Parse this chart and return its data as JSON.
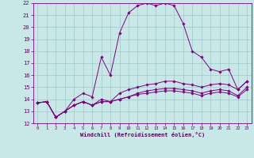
{
  "xlabel": "Windchill (Refroidissement éolien,°C)",
  "bg_color": "#c8e8e8",
  "line_color": "#800080",
  "grid_color": "#a0c8c8",
  "xlim": [
    -0.5,
    23.5
  ],
  "ylim": [
    12,
    22
  ],
  "yticks": [
    12,
    13,
    14,
    15,
    16,
    17,
    18,
    19,
    20,
    21,
    22
  ],
  "xticks": [
    0,
    1,
    2,
    3,
    4,
    5,
    6,
    7,
    8,
    9,
    10,
    11,
    12,
    13,
    14,
    15,
    16,
    17,
    18,
    19,
    20,
    21,
    22,
    23
  ],
  "series": [
    [
      13.7,
      13.8,
      12.5,
      13.0,
      14.0,
      14.5,
      14.2,
      17.5,
      16.0,
      19.5,
      21.2,
      21.8,
      22.0,
      21.8,
      22.0,
      21.8,
      20.3,
      18.0,
      17.5,
      16.5,
      16.3,
      16.5,
      14.8,
      15.5
    ],
    [
      13.7,
      13.8,
      12.5,
      13.0,
      13.5,
      13.8,
      13.5,
      14.0,
      13.8,
      14.5,
      14.8,
      15.0,
      15.2,
      15.3,
      15.5,
      15.5,
      15.3,
      15.2,
      15.0,
      15.2,
      15.3,
      15.2,
      14.8,
      15.5
    ],
    [
      13.7,
      13.8,
      12.5,
      13.0,
      13.5,
      13.8,
      13.5,
      13.8,
      13.8,
      14.0,
      14.2,
      14.5,
      14.7,
      14.8,
      14.9,
      14.9,
      14.8,
      14.7,
      14.5,
      14.7,
      14.8,
      14.7,
      14.3,
      15.0
    ],
    [
      13.7,
      13.8,
      12.5,
      13.0,
      13.5,
      13.8,
      13.5,
      13.8,
      13.8,
      14.0,
      14.2,
      14.4,
      14.5,
      14.6,
      14.7,
      14.7,
      14.6,
      14.5,
      14.3,
      14.5,
      14.6,
      14.5,
      14.2,
      14.8
    ]
  ]
}
